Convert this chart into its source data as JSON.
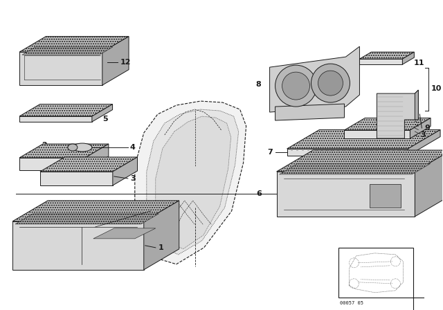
{
  "bg_color": "#ffffff",
  "lc": "#1a1a1a",
  "fig_width": 6.4,
  "fig_height": 4.48,
  "diagram_code": "00057 05"
}
